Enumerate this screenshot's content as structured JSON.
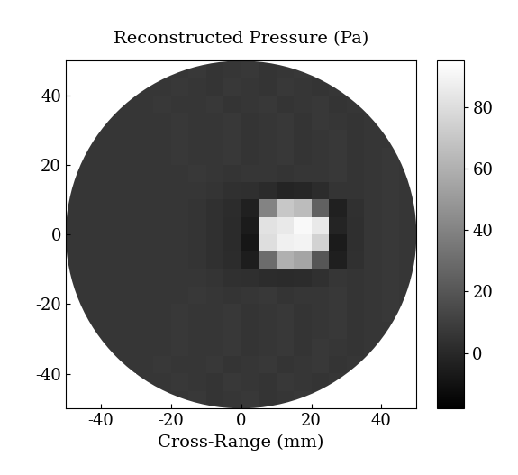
{
  "chart_data": {
    "type": "heatmap",
    "title": "Reconstructed Pressure (Pa)",
    "x_label": "Cross-Range (mm)",
    "color": "gray",
    "xlim": [
      -50,
      50
    ],
    "ylim": [
      -50,
      50
    ],
    "xticks": [
      -40,
      -20,
      0,
      20,
      40
    ],
    "yticks": [
      -40,
      -20,
      0,
      20,
      40
    ],
    "x": [
      -47.5,
      -42.5,
      -37.5,
      -32.5,
      -27.5,
      -22.5,
      -17.5,
      -12.5,
      -7.5,
      -2.5,
      2.5,
      7.5,
      12.5,
      17.5,
      22.5,
      27.5,
      32.5,
      37.5,
      42.5,
      47.5
    ],
    "y": [
      -47.5,
      -42.5,
      -37.5,
      -32.5,
      -27.5,
      -22.5,
      -17.5,
      -12.5,
      -7.5,
      -2.5,
      2.5,
      7.5,
      12.5,
      17.5,
      22.5,
      27.5,
      32.5,
      37.5,
      42.5,
      47.5
    ],
    "cells": [
      [
        null,
        null,
        null,
        null,
        null,
        6,
        6,
        7,
        5,
        6,
        7,
        5,
        6,
        7,
        6,
        null,
        null,
        null,
        null,
        null
      ],
      [
        null,
        null,
        null,
        null,
        6,
        6,
        7,
        6,
        5,
        7,
        6,
        5,
        7,
        6,
        5,
        6,
        null,
        null,
        null,
        null
      ],
      [
        null,
        null,
        6,
        6,
        6,
        7,
        6,
        6,
        7,
        5,
        6,
        7,
        5,
        6,
        7,
        5,
        6,
        6,
        null,
        null
      ],
      [
        null,
        null,
        6,
        6,
        6,
        6,
        7,
        6,
        6,
        7,
        5,
        6,
        7,
        5,
        7,
        6,
        5,
        6,
        null,
        null
      ],
      [
        null,
        6,
        6,
        6,
        6,
        6,
        7,
        6,
        6,
        7,
        5,
        6,
        7,
        5,
        6,
        7,
        5,
        6,
        6,
        null
      ],
      [
        6,
        6,
        6,
        6,
        6,
        6,
        7,
        6,
        6,
        7,
        5,
        6,
        7,
        5,
        6,
        7,
        5,
        6,
        7,
        6
      ],
      [
        6,
        6,
        6,
        6,
        6,
        6,
        6,
        7,
        6,
        5,
        6,
        7,
        5,
        6,
        6,
        7,
        5,
        6,
        7,
        6
      ],
      [
        6,
        6,
        6,
        6,
        6,
        6,
        6,
        6,
        5,
        4,
        3,
        2,
        1,
        2,
        4,
        6,
        5,
        6,
        7,
        6
      ],
      [
        6,
        6,
        6,
        6,
        6,
        6,
        6,
        5,
        4,
        2,
        -5,
        30,
        60,
        55,
        20,
        -4,
        4,
        6,
        7,
        6
      ],
      [
        6,
        6,
        6,
        6,
        6,
        6,
        6,
        5,
        4,
        1,
        -8,
        80,
        88,
        90,
        75,
        -6,
        3,
        6,
        7,
        6
      ],
      [
        6,
        6,
        6,
        6,
        6,
        6,
        6,
        5,
        4,
        1,
        -6,
        82,
        85,
        92,
        85,
        -2,
        3,
        6,
        7,
        6
      ],
      [
        6,
        6,
        6,
        6,
        6,
        6,
        6,
        5,
        4,
        2,
        -3,
        40,
        70,
        65,
        25,
        -3,
        4,
        6,
        7,
        6
      ],
      [
        6,
        6,
        6,
        6,
        6,
        6,
        6,
        6,
        5,
        4,
        3,
        1,
        -2,
        -1,
        2,
        5,
        5,
        6,
        7,
        6
      ],
      [
        6,
        6,
        6,
        6,
        6,
        6,
        6,
        7,
        6,
        5,
        6,
        6,
        5,
        6,
        6,
        7,
        5,
        6,
        7,
        6
      ],
      [
        6,
        6,
        6,
        6,
        6,
        6,
        7,
        6,
        6,
        7,
        5,
        6,
        7,
        5,
        6,
        7,
        5,
        6,
        7,
        6
      ],
      [
        null,
        6,
        6,
        6,
        6,
        6,
        7,
        6,
        6,
        7,
        5,
        6,
        7,
        5,
        6,
        7,
        5,
        6,
        6,
        null
      ],
      [
        null,
        null,
        6,
        6,
        6,
        6,
        7,
        6,
        6,
        7,
        5,
        6,
        7,
        5,
        7,
        6,
        5,
        6,
        null,
        null
      ],
      [
        null,
        null,
        6,
        6,
        6,
        7,
        6,
        6,
        7,
        5,
        6,
        7,
        5,
        6,
        7,
        5,
        6,
        6,
        null,
        null
      ],
      [
        null,
        null,
        null,
        null,
        6,
        6,
        7,
        6,
        5,
        7,
        6,
        5,
        7,
        6,
        5,
        6,
        null,
        null,
        null,
        null
      ],
      [
        null,
        null,
        null,
        null,
        null,
        6,
        6,
        7,
        5,
        6,
        7,
        5,
        6,
        7,
        6,
        null,
        null,
        null,
        null,
        null
      ]
    ],
    "colorbar": {
      "range": [
        -18,
        95
      ],
      "ticks": [
        0,
        20,
        40,
        60,
        80
      ]
    }
  }
}
